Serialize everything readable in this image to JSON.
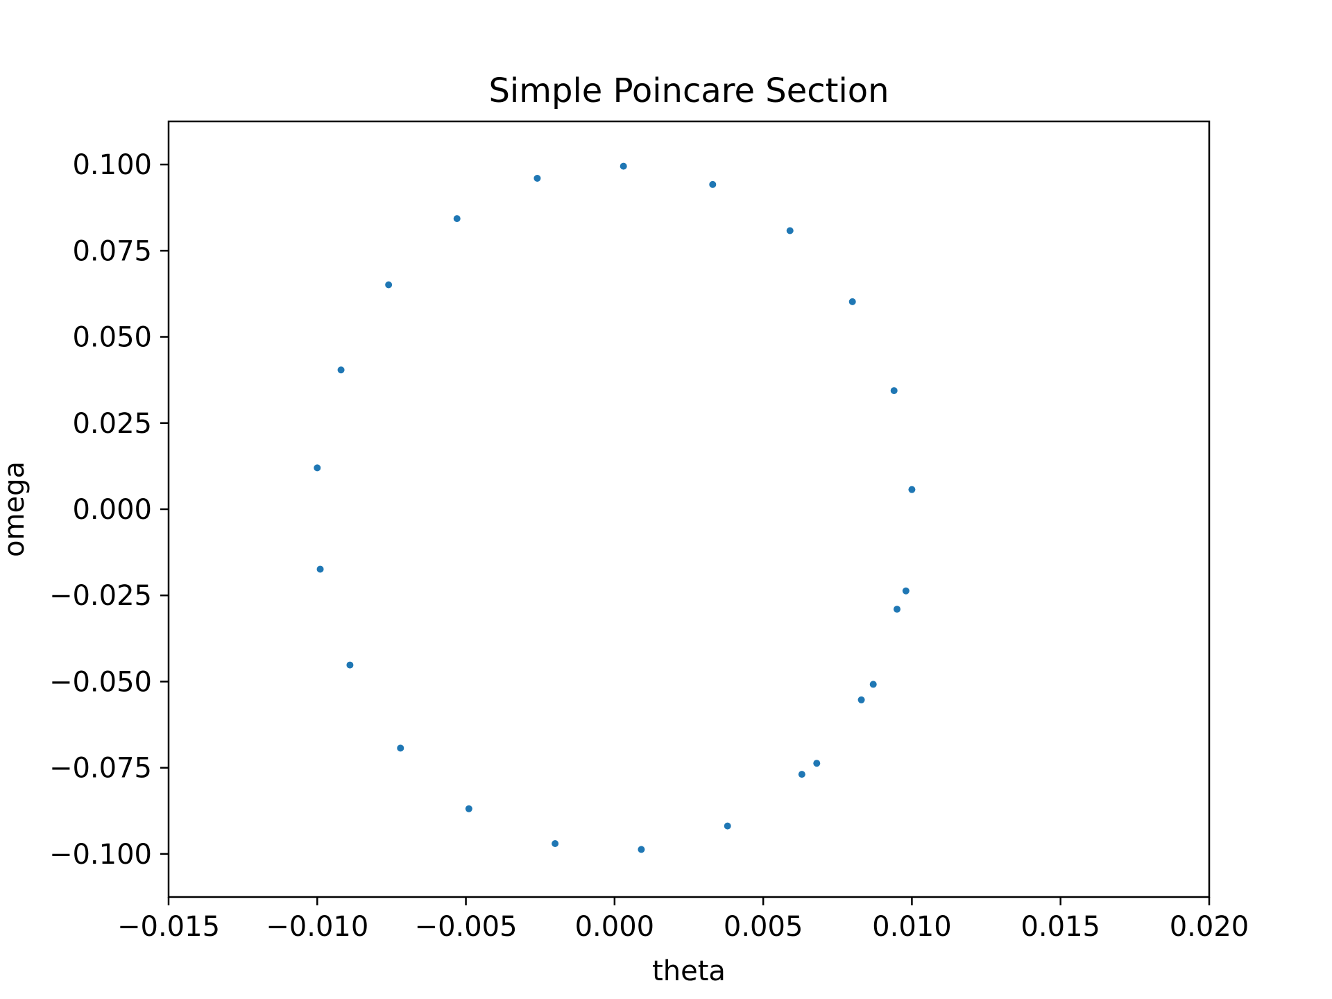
{
  "chart_data": {
    "type": "scatter",
    "title": "Simple Poincare Section",
    "xlabel": "theta",
    "ylabel": "omega",
    "xlim": [
      -0.015,
      0.02
    ],
    "ylim": [
      -0.1125,
      0.1125
    ],
    "xticks": [
      -0.015,
      -0.01,
      -0.005,
      0.0,
      0.005,
      0.01,
      0.015,
      0.02
    ],
    "xtick_labels": [
      "−0.015",
      "−0.010",
      "−0.005",
      "0.000",
      "0.005",
      "0.010",
      "0.015",
      "0.020"
    ],
    "yticks": [
      0.1,
      0.075,
      0.05,
      0.025,
      0.0,
      -0.025,
      -0.05,
      -0.075,
      -0.1
    ],
    "ytick_labels": [
      "0.100",
      "0.075",
      "0.050",
      "0.025",
      "0.000",
      "−0.025",
      "−0.050",
      "−0.075",
      "−0.100"
    ],
    "grid": false,
    "series": [
      {
        "color": "#1f77b4",
        "points": [
          {
            "x": 0.0003,
            "y": 0.0995
          },
          {
            "x": 0.0033,
            "y": 0.0942
          },
          {
            "x": 0.0059,
            "y": 0.0808
          },
          {
            "x": 0.008,
            "y": 0.0602
          },
          {
            "x": 0.0094,
            "y": 0.0344
          },
          {
            "x": 0.01,
            "y": 0.0057
          },
          {
            "x": 0.0098,
            "y": -0.0237
          },
          {
            "x": 0.0095,
            "y": -0.029
          },
          {
            "x": 0.0087,
            "y": -0.0508
          },
          {
            "x": 0.0083,
            "y": -0.0553
          },
          {
            "x": 0.0068,
            "y": -0.0737
          },
          {
            "x": 0.0063,
            "y": -0.0769
          },
          {
            "x": 0.0038,
            "y": -0.0919
          },
          {
            "x": 0.0009,
            "y": -0.0987
          },
          {
            "x": -0.002,
            "y": -0.097
          },
          {
            "x": -0.0049,
            "y": -0.0869
          },
          {
            "x": -0.0072,
            "y": -0.0693
          },
          {
            "x": -0.0089,
            "y": -0.0452
          },
          {
            "x": -0.0099,
            "y": -0.0174
          },
          {
            "x": -0.01,
            "y": 0.012
          },
          {
            "x": -0.0092,
            "y": 0.0404
          },
          {
            "x": -0.0076,
            "y": 0.0651
          },
          {
            "x": -0.0053,
            "y": 0.0843
          },
          {
            "x": -0.0026,
            "y": 0.096
          }
        ]
      }
    ]
  }
}
